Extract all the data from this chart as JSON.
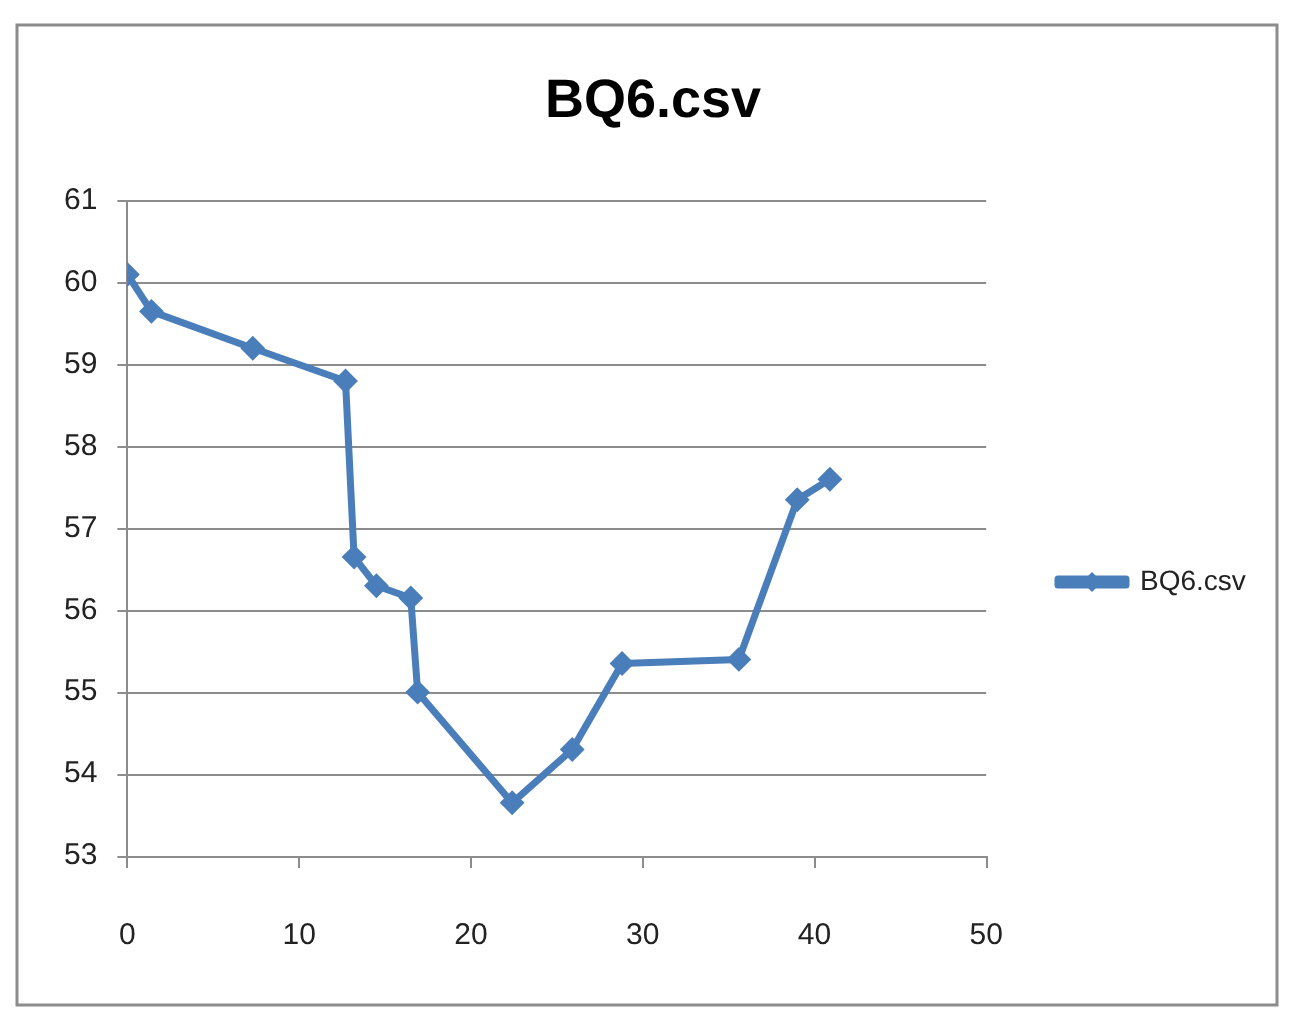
{
  "chart_data": {
    "type": "line",
    "title": "BQ6.csv",
    "x": [
      0,
      1.4,
      7.3,
      12.7,
      13.2,
      14.5,
      16.5,
      16.9,
      22.4,
      25.9,
      28.8,
      35.6,
      39.0,
      40.9
    ],
    "series": [
      {
        "name": "BQ6.csv",
        "color": "#4a7ebb",
        "values": [
          60.1,
          59.65,
          59.2,
          58.8,
          56.65,
          56.3,
          56.15,
          55.0,
          53.65,
          54.3,
          55.35,
          55.4,
          57.35,
          57.6
        ]
      }
    ],
    "xlim": [
      0,
      50
    ],
    "xticks": [
      0,
      10,
      20,
      30,
      40,
      50
    ],
    "ylim": [
      53,
      61
    ],
    "yticks": [
      53,
      54,
      55,
      56,
      57,
      58,
      59,
      60,
      61
    ],
    "grid": "y",
    "legend": "right",
    "marker": "diamond",
    "line_style": "solid"
  }
}
